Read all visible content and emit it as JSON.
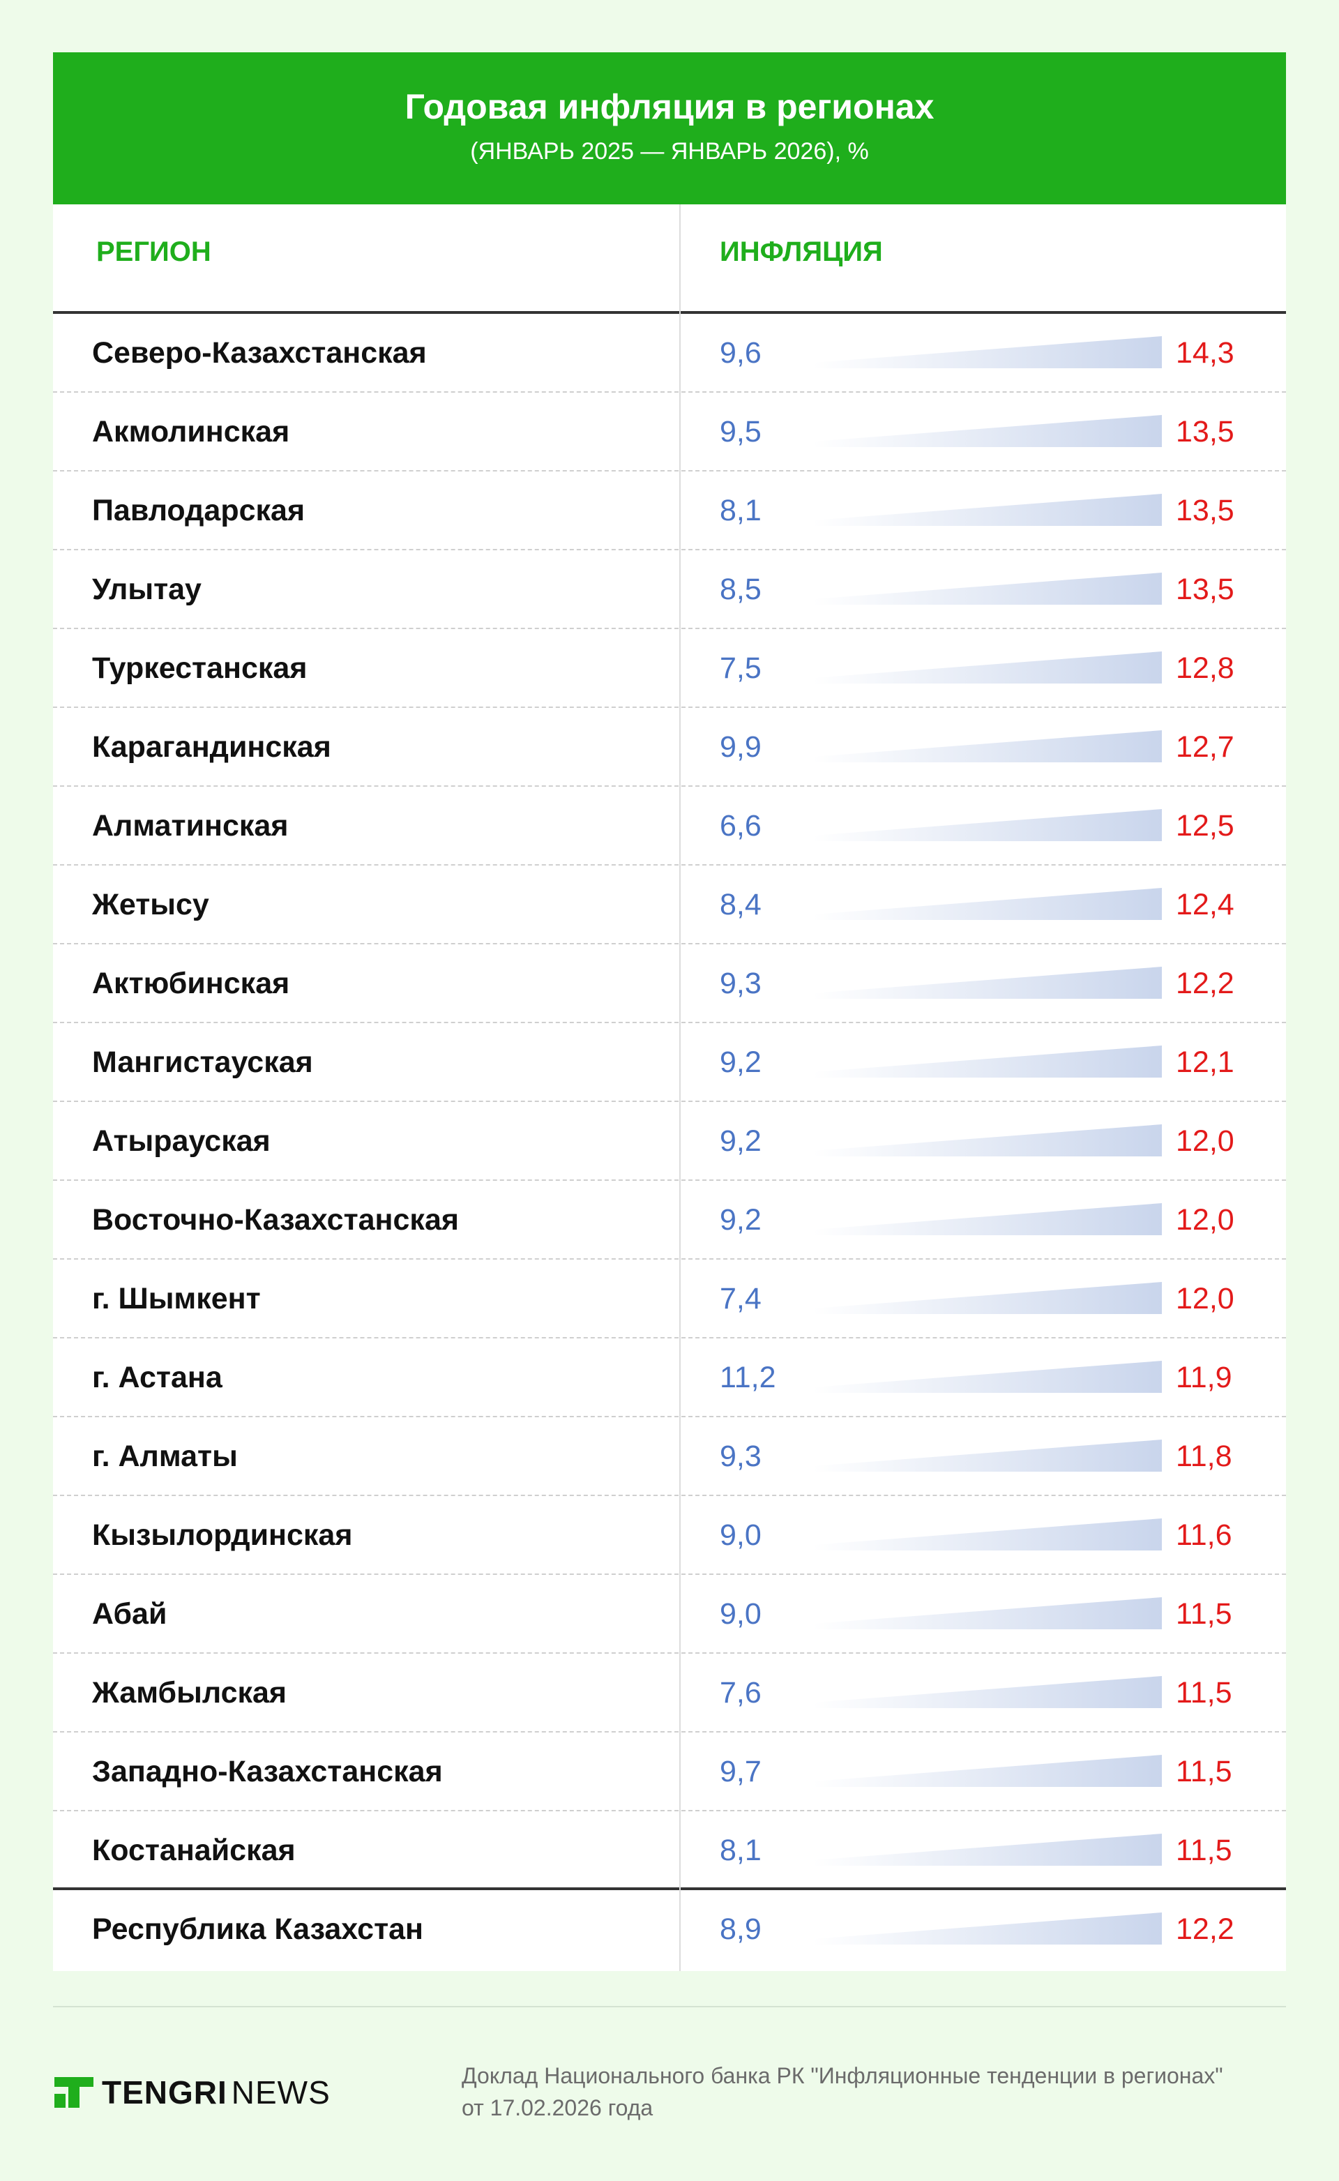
{
  "chart_data": {
    "type": "table",
    "title": "Годовая инфляция в регионах",
    "subtitle": "(ЯНВАРЬ 2025 — ЯНВАРЬ 2026), %",
    "column_headers": [
      "РЕГИОН",
      "ИНФЛЯЦИЯ"
    ],
    "rows": [
      {
        "region": "Северо-Казахстанская",
        "v2025": "9,6",
        "v2026": "14,3"
      },
      {
        "region": "Акмолинская",
        "v2025": "9,5",
        "v2026": "13,5"
      },
      {
        "region": "Павлодарская",
        "v2025": "8,1",
        "v2026": "13,5"
      },
      {
        "region": "Улытау",
        "v2025": "8,5",
        "v2026": "13,5"
      },
      {
        "region": "Туркестанская",
        "v2025": "7,5",
        "v2026": "12,8"
      },
      {
        "region": "Карагандинская",
        "v2025": "9,9",
        "v2026": "12,7"
      },
      {
        "region": "Алматинская",
        "v2025": "6,6",
        "v2026": "12,5"
      },
      {
        "region": "Жетысу",
        "v2025": "8,4",
        "v2026": "12,4"
      },
      {
        "region": "Актюбинская",
        "v2025": "9,3",
        "v2026": "12,2"
      },
      {
        "region": "Мангистауская",
        "v2025": "9,2",
        "v2026": "12,1"
      },
      {
        "region": "Атырауская",
        "v2025": "9,2",
        "v2026": "12,0"
      },
      {
        "region": "Восточно-Казахстанская",
        "v2025": "9,2",
        "v2026": "12,0"
      },
      {
        "region": "г. Шымкент",
        "v2025": "7,4",
        "v2026": "12,0"
      },
      {
        "region": "г. Астана",
        "v2025": "11,2",
        "v2026": "11,9"
      },
      {
        "region": "г. Алматы",
        "v2025": "9,3",
        "v2026": "11,8"
      },
      {
        "region": "Кызылординская",
        "v2025": "9,0",
        "v2026": "11,6"
      },
      {
        "region": "Абай",
        "v2025": "9,0",
        "v2026": "11,5"
      },
      {
        "region": "Жамбылская",
        "v2025": "7,6",
        "v2026": "11,5"
      },
      {
        "region": "Западно-Казахстанская",
        "v2025": "9,7",
        "v2026": "11,5"
      },
      {
        "region": "Костанайская",
        "v2025": "8,1",
        "v2026": "11,5"
      }
    ],
    "total": {
      "region": "Республика Казахстан",
      "v2025": "8,9",
      "v2026": "12,2"
    },
    "colors": {
      "header_bg": "#1fae1c",
      "v2025": "#4a74c4",
      "v2026": "#e31a1a",
      "wedge": "#c9d5ec"
    }
  },
  "footer": {
    "brand_a": "TENGRI",
    "brand_b": "NEWS",
    "source_line1": "Доклад Национального банка РК \"Инфляционные тенденции в регионах\"",
    "source_line2": "от 17.02.2026 года"
  }
}
